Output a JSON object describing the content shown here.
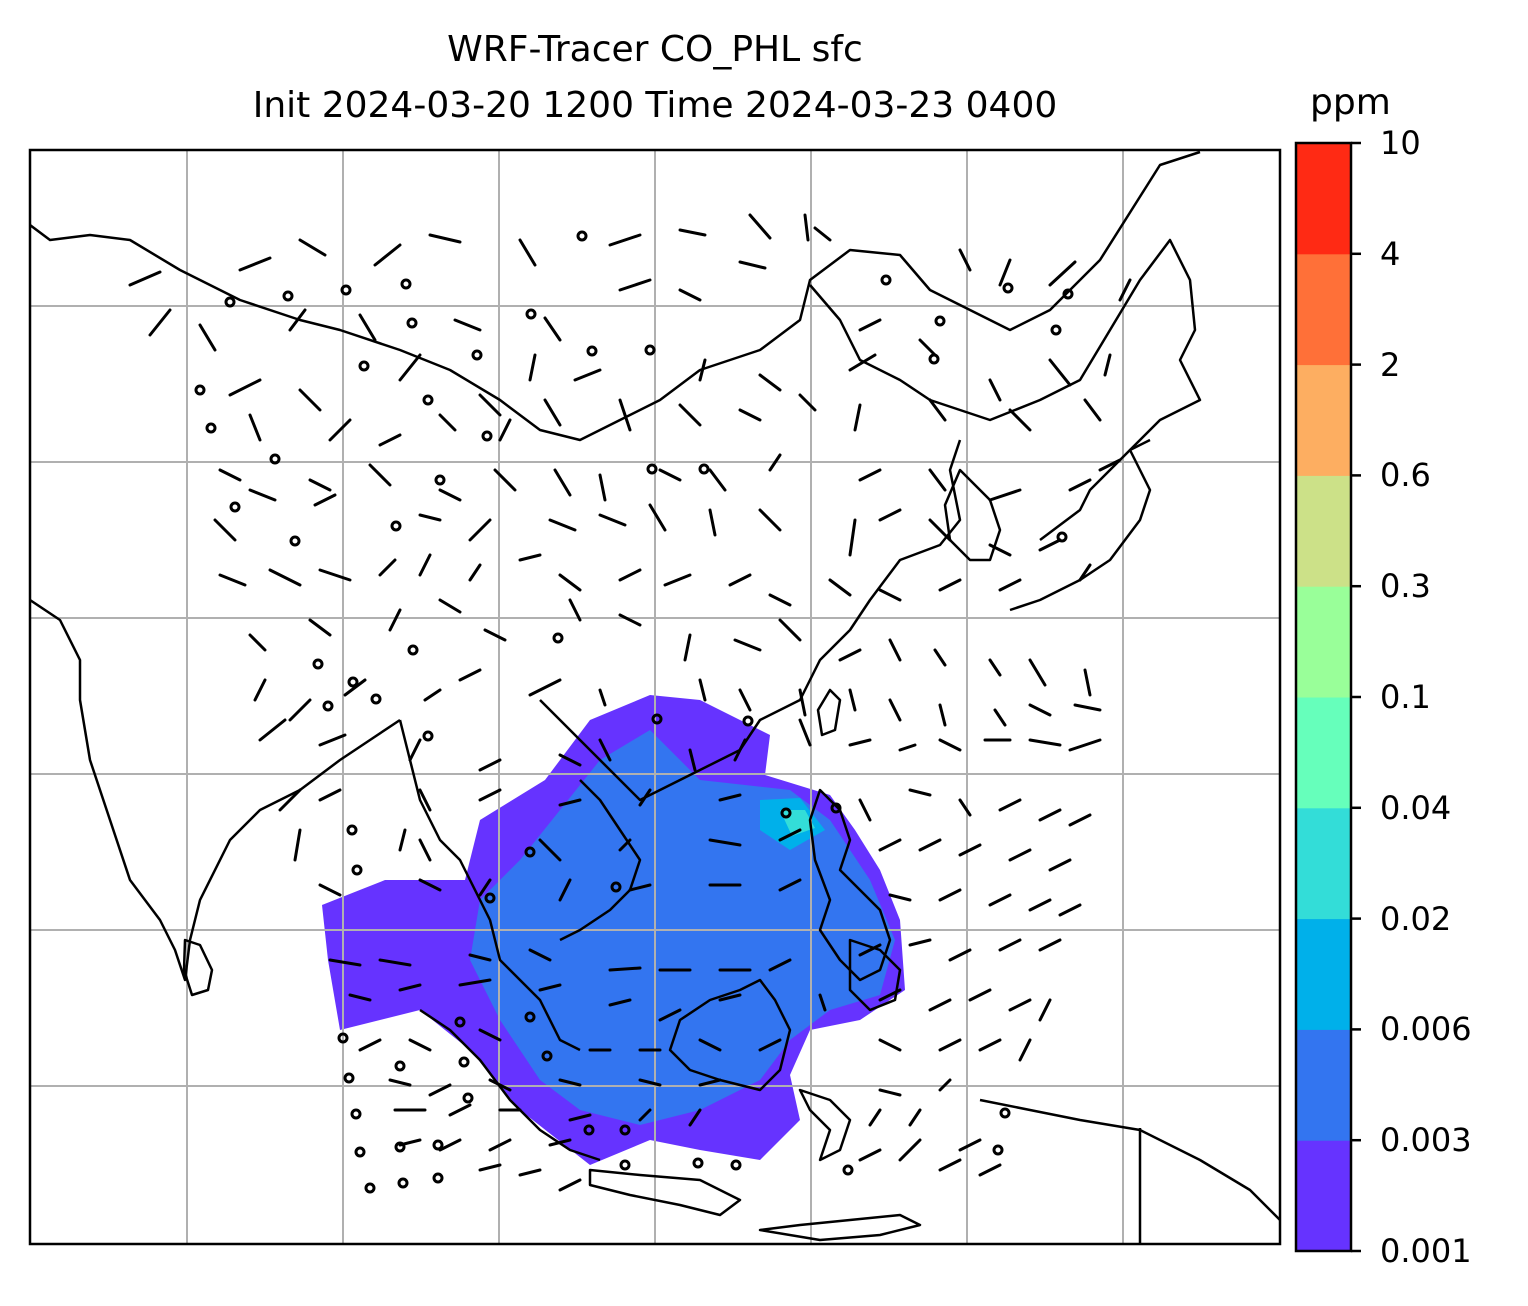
{
  "title": {
    "line1": "WRF-Tracer CO_PHL sfc",
    "line2": "Init 2024-03-20 1200 Time 2024-03-23 0400"
  },
  "colorbar": {
    "unit": "ppm",
    "levels": [
      "0.001",
      "0.003",
      "0.006",
      "0.02",
      "0.04",
      "0.1",
      "0.3",
      "0.6",
      "2",
      "4",
      "10"
    ],
    "colors": [
      "#6633ff",
      "#3375f0",
      "#00b0ea",
      "#33ddd8",
      "#66ffbb",
      "#99ff99",
      "#cce188",
      "#fdae61",
      "#ff7038",
      "#ff2a14"
    ]
  },
  "map": {
    "gridlines": true,
    "coastlines": true,
    "wind_barbs": true
  }
}
